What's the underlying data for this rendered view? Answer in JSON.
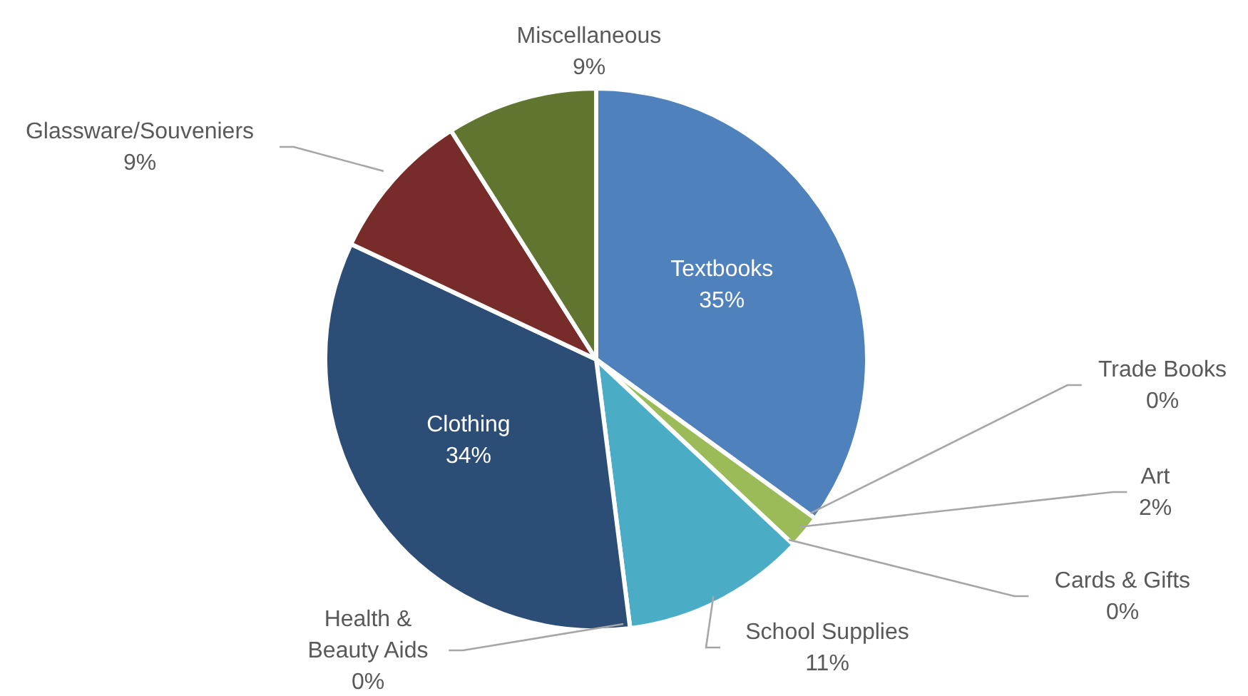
{
  "chart_data": {
    "type": "pie",
    "categories": [
      "Textbooks",
      "Trade Books",
      "Art",
      "Cards & Gifts",
      "School Supplies",
      "Health & Beauty Aids",
      "Clothing",
      "Glassware/Souveniers",
      "Miscellaneous"
    ],
    "values": [
      35,
      0,
      2,
      0,
      11,
      0,
      34,
      9,
      9
    ],
    "value_labels": [
      "35%",
      "0%",
      "2%",
      "0%",
      "11%",
      "0%",
      "34%",
      "9%",
      "9%"
    ],
    "colors": [
      "#4f81bd",
      "#c0504d",
      "#9bbb59",
      "#8064a2",
      "#4bacc6",
      "#f79646",
      "#2c4d75",
      "#772c2a",
      "#5f7530"
    ]
  }
}
